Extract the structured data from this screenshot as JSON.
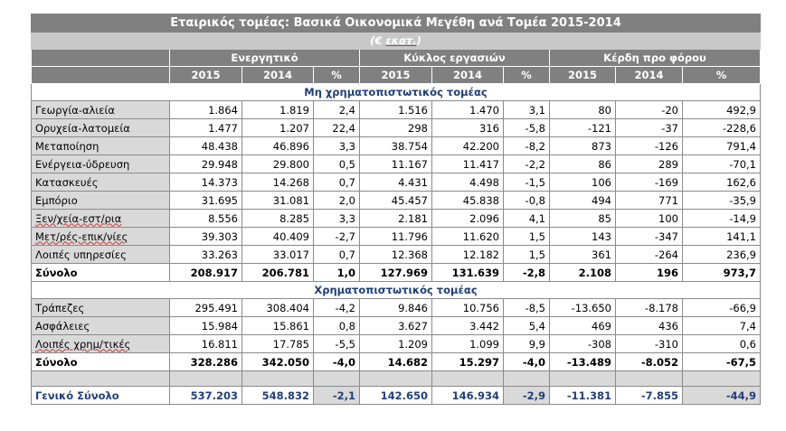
{
  "title": "Εταιρικός τομέας: Βασικά Οικονομικά Μεγέθη ανά Τομέα 2015-2014",
  "unit_prefix": "(€ ",
  "unit_word": "εκατ.",
  "unit_suffix": ")",
  "groups": [
    "Ενεργητικό",
    "Κύκλος εργασιών",
    "Κέρδη προ φόρου"
  ],
  "subheaders": [
    "2015",
    "2014",
    "%",
    "2015",
    "2014",
    "%",
    "2015",
    "2014",
    "%"
  ],
  "section_nonfin": "Μη χρηματοπιστωτικός τομέας",
  "section_fin": "Χρηματοπιστωτικός τομέας",
  "nonfin_rows": [
    {
      "label": "Γεωργία-αλιεία",
      "v": [
        "1.864",
        "1.819",
        "2,4",
        "1.516",
        "1.470",
        "3,1",
        "80",
        "-20",
        "492,9"
      ]
    },
    {
      "label": "Ορυχεία-λατομεία",
      "v": [
        "1.477",
        "1.207",
        "22,4",
        "298",
        "316",
        "-5,8",
        "-121",
        "-37",
        "-228,6"
      ]
    },
    {
      "label": "Μεταποίηση",
      "v": [
        "48.438",
        "46.896",
        "3,3",
        "38.754",
        "42.200",
        "-8,2",
        "873",
        "-126",
        "791,4"
      ]
    },
    {
      "label": "Ενέργεια-ύδρευση",
      "v": [
        "29.948",
        "29.800",
        "0,5",
        "11.167",
        "11.417",
        "-2,2",
        "86",
        "289",
        "-70,1"
      ]
    },
    {
      "label": "Κατασκευές",
      "v": [
        "14.373",
        "14.268",
        "0,7",
        "4.431",
        "4.498",
        "-1,5",
        "106",
        "-169",
        "162,6"
      ]
    },
    {
      "label": "Εμπόριο",
      "v": [
        "31.695",
        "31.081",
        "2,0",
        "45.457",
        "45.838",
        "-0,8",
        "494",
        "771",
        "-35,9"
      ]
    },
    {
      "label": "Ξεν/χεία-εστ/ρια",
      "v": [
        "8.556",
        "8.285",
        "3,3",
        "2.181",
        "2.096",
        "4,1",
        "85",
        "100",
        "-14,9"
      ]
    },
    {
      "label": "Μετ/ρές-επικ/νίες",
      "v": [
        "39.303",
        "40.409",
        "-2,7",
        "11.796",
        "11.620",
        "1,5",
        "143",
        "-347",
        "141,1"
      ]
    },
    {
      "label": "Λοιπές υπηρεσίες",
      "v": [
        "33.263",
        "33.017",
        "0,7",
        "12.368",
        "12.182",
        "1,5",
        "361",
        "-264",
        "236,9"
      ]
    }
  ],
  "nonfin_total": {
    "label": "Σύνολο",
    "v": [
      "208.917",
      "206.781",
      "1,0",
      "127.969",
      "131.639",
      "-2,8",
      "2.108",
      "196",
      "973,7"
    ]
  },
  "fin_rows": [
    {
      "label": "Τράπεζες",
      "v": [
        "295.491",
        "308.404",
        "-4,2",
        "9.846",
        "10.756",
        "-8,5",
        "-13.650",
        "-8.178",
        "-66,9"
      ]
    },
    {
      "label": "Ασφάλειες",
      "v": [
        "15.984",
        "15.861",
        "0,8",
        "3.627",
        "3.442",
        "5,4",
        "469",
        "436",
        "7,4"
      ]
    },
    {
      "label": "Λοιπές χρημ/τικές",
      "v": [
        "16.811",
        "17.785",
        "-5,5",
        "1.209",
        "1.099",
        "9,9",
        "-308",
        "-310",
        "0,6"
      ]
    }
  ],
  "fin_total": {
    "label": "Σύνολο",
    "v": [
      "328.286",
      "342.050",
      "-4,0",
      "14.682",
      "15.297",
      "-4,0",
      "-13.489",
      "-8.052",
      "-67,5"
    ]
  },
  "grand_total": {
    "label": "Γενικό Σύνολο",
    "v": [
      "537.203",
      "548.832",
      "-2,1",
      "142.650",
      "146.934",
      "-2,9",
      "-11.381",
      "-7.855",
      "-44,9"
    ]
  }
}
